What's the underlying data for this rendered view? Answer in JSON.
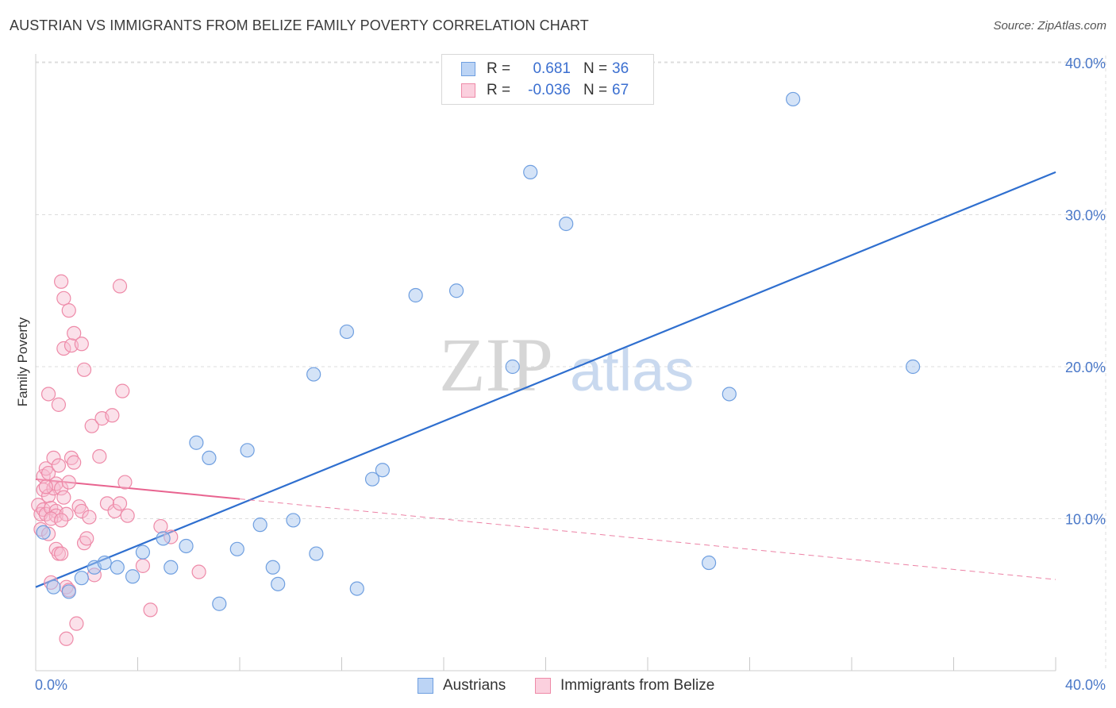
{
  "title": "AUSTRIAN VS IMMIGRANTS FROM BELIZE FAMILY POVERTY CORRELATION CHART",
  "source": "Source: ZipAtlas.com",
  "watermark": {
    "zip": "ZIP",
    "atlas": "atlas"
  },
  "legend": {
    "rows": [
      {
        "r_label": "R =",
        "r_value": "0.681",
        "n_label": "N =",
        "n_value": "36"
      },
      {
        "r_label": "R =",
        "r_value": "-0.036",
        "n_label": "N =",
        "n_value": "67"
      }
    ]
  },
  "bottom_legend": {
    "austrians": "Austrians",
    "belize": "Immigrants from Belize"
  },
  "colors": {
    "blue_fill": "#a9c8f0",
    "blue_stroke": "#6f9fe0",
    "blue_line": "#2f6fcf",
    "pink_fill": "#f7bcd0",
    "pink_stroke": "#ee8aa8",
    "pink_line": "#e8638f",
    "grid": "#dddddd",
    "tick_label": "#4a78c8"
  },
  "chart_data": {
    "type": "scatter",
    "title": "AUSTRIAN VS IMMIGRANTS FROM BELIZE FAMILY POVERTY CORRELATION CHART",
    "xlabel": "",
    "ylabel": "Family Poverty",
    "xlim": [
      0,
      40
    ],
    "ylim": [
      0,
      40
    ],
    "x_tick_labels": [
      "0.0%",
      "40.0%"
    ],
    "y_ticks": [
      10,
      20,
      30,
      40
    ],
    "y_tick_labels": [
      "10.0%",
      "20.0%",
      "30.0%",
      "40.0%"
    ],
    "series": [
      {
        "name": "Austrians",
        "r": 0.681,
        "n": 36,
        "trend": {
          "x0": 0,
          "y0": 5.5,
          "x1": 40,
          "y1": 32.8
        },
        "points": [
          [
            0.3,
            9.1
          ],
          [
            0.7,
            5.5
          ],
          [
            1.3,
            5.2
          ],
          [
            1.8,
            6.1
          ],
          [
            2.3,
            6.8
          ],
          [
            2.7,
            7.1
          ],
          [
            3.2,
            6.8
          ],
          [
            3.8,
            6.2
          ],
          [
            4.2,
            7.8
          ],
          [
            5.0,
            8.7
          ],
          [
            5.3,
            6.8
          ],
          [
            5.9,
            8.2
          ],
          [
            6.3,
            15.0
          ],
          [
            6.8,
            14.0
          ],
          [
            7.2,
            4.4
          ],
          [
            7.9,
            8.0
          ],
          [
            8.3,
            14.5
          ],
          [
            8.8,
            9.6
          ],
          [
            9.3,
            6.8
          ],
          [
            9.5,
            5.7
          ],
          [
            10.1,
            9.9
          ],
          [
            10.9,
            19.5
          ],
          [
            11.0,
            7.7
          ],
          [
            12.2,
            22.3
          ],
          [
            12.6,
            5.4
          ],
          [
            13.2,
            12.6
          ],
          [
            13.6,
            13.2
          ],
          [
            14.9,
            24.7
          ],
          [
            16.5,
            25.0
          ],
          [
            18.7,
            20.0
          ],
          [
            19.4,
            32.8
          ],
          [
            20.8,
            29.4
          ],
          [
            26.4,
            7.1
          ],
          [
            27.2,
            18.2
          ],
          [
            29.7,
            37.6
          ],
          [
            34.4,
            20.0
          ]
        ]
      },
      {
        "name": "Immigrants from Belize",
        "r": -0.036,
        "n": 67,
        "trend": {
          "x0": 0,
          "y0": 12.6,
          "x1": 8.0,
          "y1": 11.3,
          "x2": 40,
          "y2": 6.0
        },
        "points": [
          [
            0.1,
            10.9
          ],
          [
            0.2,
            10.3
          ],
          [
            0.2,
            9.3
          ],
          [
            0.3,
            11.9
          ],
          [
            0.3,
            12.8
          ],
          [
            0.3,
            10.6
          ],
          [
            0.4,
            10.3
          ],
          [
            0.4,
            13.3
          ],
          [
            0.5,
            11.5
          ],
          [
            0.5,
            9.0
          ],
          [
            0.5,
            13.0
          ],
          [
            0.5,
            18.2
          ],
          [
            0.6,
            5.8
          ],
          [
            0.6,
            10.7
          ],
          [
            0.7,
            12.0
          ],
          [
            0.7,
            14.0
          ],
          [
            0.8,
            12.3
          ],
          [
            0.8,
            8.0
          ],
          [
            0.8,
            10.5
          ],
          [
            0.8,
            10.2
          ],
          [
            0.9,
            7.7
          ],
          [
            0.9,
            13.5
          ],
          [
            0.9,
            17.5
          ],
          [
            1.0,
            25.6
          ],
          [
            1.0,
            7.7
          ],
          [
            1.0,
            12.0
          ],
          [
            1.1,
            24.5
          ],
          [
            1.1,
            21.2
          ],
          [
            1.1,
            11.4
          ],
          [
            1.2,
            10.3
          ],
          [
            1.2,
            5.5
          ],
          [
            1.2,
            2.1
          ],
          [
            1.3,
            23.7
          ],
          [
            1.3,
            5.3
          ],
          [
            1.3,
            12.4
          ],
          [
            1.4,
            14.0
          ],
          [
            1.4,
            21.4
          ],
          [
            1.5,
            22.2
          ],
          [
            1.5,
            13.7
          ],
          [
            1.6,
            3.1
          ],
          [
            1.7,
            10.8
          ],
          [
            1.8,
            21.5
          ],
          [
            1.8,
            10.5
          ],
          [
            1.9,
            19.8
          ],
          [
            1.9,
            8.4
          ],
          [
            2.0,
            8.7
          ],
          [
            2.1,
            10.1
          ],
          [
            2.2,
            16.1
          ],
          [
            2.3,
            6.3
          ],
          [
            2.5,
            14.1
          ],
          [
            2.6,
            16.6
          ],
          [
            2.8,
            11.0
          ],
          [
            3.0,
            16.8
          ],
          [
            3.1,
            10.5
          ],
          [
            3.3,
            11.0
          ],
          [
            3.3,
            25.3
          ],
          [
            3.4,
            18.4
          ],
          [
            3.5,
            12.4
          ],
          [
            3.6,
            10.2
          ],
          [
            4.2,
            6.9
          ],
          [
            4.5,
            4.0
          ],
          [
            4.9,
            9.5
          ],
          [
            5.3,
            8.8
          ],
          [
            6.4,
            6.5
          ],
          [
            0.6,
            10.0
          ],
          [
            1.0,
            9.9
          ],
          [
            0.4,
            12.1
          ]
        ]
      }
    ]
  }
}
